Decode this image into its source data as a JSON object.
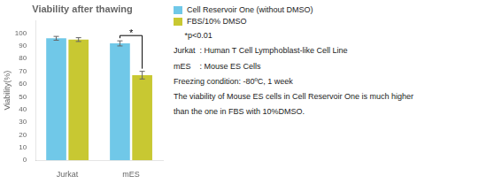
{
  "chart_data": {
    "type": "bar",
    "title": "Viability after thawing",
    "categories": [
      "Jurkat",
      "mES"
    ],
    "series": [
      {
        "name": "Cell Reservoir One (without DMSO)",
        "color": "#70C8E8",
        "values": [
          96,
          92
        ],
        "errors": [
          1.5,
          2.0
        ]
      },
      {
        "name": "FBS/10% DMSO",
        "color": "#C8C832",
        "values": [
          95,
          67
        ],
        "errors": [
          1.5,
          3.0
        ]
      }
    ],
    "ylabel": "Viability(%)",
    "ylim": [
      0,
      110
    ],
    "yticks": [
      0,
      10,
      20,
      30,
      40,
      50,
      60,
      70,
      80,
      90,
      100
    ],
    "grid": false,
    "legend": "right",
    "annotations": [
      {
        "text": "*",
        "category": "mES"
      },
      {
        "text": "     *p<0.01"
      },
      {
        "text": "Jurkat  : Human T Cell Lymphoblast-like Cell Line"
      },
      {
        "text": "mES    : Mouse ES Cells"
      },
      {
        "text": "Freezing condition: -80ºC, 1 week"
      },
      {
        "text": "The viability of Mouse ES cells in Cell Reservoir One is much higher"
      },
      {
        "text": "than the one in FBS with 10%DMSO."
      }
    ]
  }
}
